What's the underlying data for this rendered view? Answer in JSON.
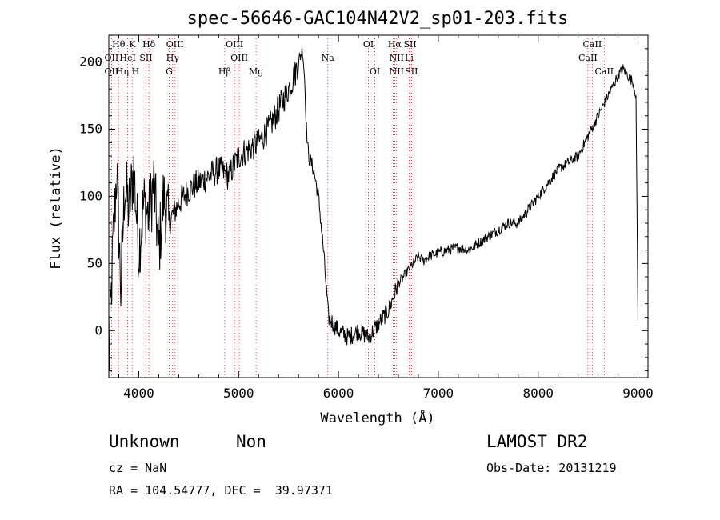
{
  "chart_data": {
    "type": "line",
    "title": "spec-56646-GAC104N42V2_sp01-203.fits",
    "xlabel": "Wavelength (Å)",
    "ylabel": "Flux (relative)",
    "xlim": [
      3700,
      9100
    ],
    "ylim": [
      -35,
      220
    ],
    "xticks": [
      4000,
      5000,
      6000,
      7000,
      8000,
      9000
    ],
    "yticks": [
      0,
      50,
      100,
      150,
      200
    ],
    "grid": false,
    "line_color": "#000000",
    "marker_color": "#ff0000",
    "series": [
      {
        "x": [
          3700,
          3740,
          3780,
          3820,
          3860,
          3900,
          3950,
          4000,
          4050,
          4100,
          4150,
          4200,
          4250,
          4300,
          4400,
          4500,
          4600,
          4700,
          4800,
          4900,
          5000,
          5100,
          5200,
          5300,
          5400,
          5500,
          5560,
          5600,
          5640,
          5660,
          5680,
          5700,
          5750,
          5800,
          5850,
          5900,
          6000,
          6100,
          6200,
          6300,
          6400,
          6450,
          6500,
          6550,
          6600,
          6650,
          6700,
          6750,
          6800,
          6850,
          6900,
          7000,
          7100,
          7200,
          7300,
          7400,
          7500,
          7600,
          7700,
          7800,
          7900,
          8000,
          8100,
          8200,
          8300,
          8400,
          8500,
          8600,
          8700,
          8800,
          8850,
          8900,
          8950,
          8980,
          9000
        ],
        "values": [
          -30,
          60,
          120,
          30,
          110,
          90,
          120,
          60,
          95,
          85,
          110,
          60,
          100,
          80,
          95,
          105,
          110,
          115,
          120,
          115,
          130,
          135,
          140,
          150,
          165,
          180,
          190,
          200,
          210,
          190,
          150,
          130,
          120,
          100,
          60,
          10,
          0,
          -5,
          0,
          -5,
          5,
          10,
          15,
          25,
          35,
          40,
          45,
          50,
          55,
          52,
          55,
          58,
          60,
          62,
          60,
          65,
          70,
          75,
          80,
          80,
          90,
          100,
          110,
          120,
          125,
          130,
          145,
          160,
          175,
          190,
          195,
          190,
          185,
          175,
          5
        ]
      }
    ],
    "lines": [
      {
        "name": "Hθ",
        "x": 3798
      },
      {
        "name": "K",
        "x": 3934
      },
      {
        "name": "Hδ",
        "x": 4102
      },
      {
        "name": "OII",
        "x": 3727
      },
      {
        "name": "HeI",
        "x": 3889
      },
      {
        "name": "SII",
        "x": 4072
      },
      {
        "name": "OIII",
        "x": 4363
      },
      {
        "name": "Hγ",
        "x": 4340
      },
      {
        "name": "G",
        "x": 4305
      },
      {
        "name": "Hβ",
        "x": 4861
      },
      {
        "name": "OIII",
        "x": 4959
      },
      {
        "name": "OIII",
        "x": 5007
      },
      {
        "name": "Mg",
        "x": 5175
      },
      {
        "name": "Na",
        "x": 5893
      },
      {
        "name": "OI",
        "x": 6300
      },
      {
        "name": "OI",
        "x": 6364
      },
      {
        "name": "Hα",
        "x": 6563
      },
      {
        "name": "NII",
        "x": 6583
      },
      {
        "name": "SII",
        "x": 6717
      },
      {
        "name": "NII",
        "x": 6548
      },
      {
        "name": "Li",
        "x": 6708
      },
      {
        "name": "SII",
        "x": 6731
      },
      {
        "name": "CaII",
        "x": 8498
      },
      {
        "name": "CaII",
        "x": 8542
      },
      {
        "name": "CaII",
        "x": 8662
      }
    ],
    "line_labels": [
      {
        "text": "Hθ",
        "x": 3798,
        "row": 0
      },
      {
        "text": "K",
        "x": 3934,
        "row": 0
      },
      {
        "text": "Hδ",
        "x": 4102,
        "row": 0
      },
      {
        "text": "OII",
        "x": 3727,
        "row": 1
      },
      {
        "text": "HeI",
        "x": 3889,
        "row": 1
      },
      {
        "text": "SII",
        "x": 4072,
        "row": 1
      },
      {
        "text": "OIII",
        "x": 4363,
        "row": 0
      },
      {
        "text": "Hγ",
        "x": 4340,
        "row": 1
      },
      {
        "text": "G",
        "x": 4305,
        "row": 2
      },
      {
        "text": "OIII",
        "x": 4959,
        "row": 0
      },
      {
        "text": "OIII",
        "x": 5007,
        "row": 1
      },
      {
        "text": "Hβ",
        "x": 4861,
        "row": 2
      },
      {
        "text": "Mg",
        "x": 5175,
        "row": 2
      },
      {
        "text": "Na",
        "x": 5893,
        "row": 1
      },
      {
        "text": "OI",
        "x": 6300,
        "row": 0
      },
      {
        "text": "OI",
        "x": 6364,
        "row": 2
      },
      {
        "text": "Hα",
        "x": 6563,
        "row": 0
      },
      {
        "text": "SII",
        "x": 6717,
        "row": 0
      },
      {
        "text": "NII",
        "x": 6583,
        "row": 1
      },
      {
        "text": "Li",
        "x": 6708,
        "row": 1
      },
      {
        "text": "NII",
        "x": 6583,
        "row": 2
      },
      {
        "text": "SII",
        "x": 6731,
        "row": 2
      },
      {
        "text": "OII",
        "x": 3727,
        "row": 2
      },
      {
        "text": "Hη",
        "x": 3835,
        "row": 2
      },
      {
        "text": "H",
        "x": 3969,
        "row": 2
      },
      {
        "text": "CaII",
        "x": 8542,
        "row": 0
      },
      {
        "text": "CaII",
        "x": 8498,
        "row": 1
      },
      {
        "text": "CaII",
        "x": 8662,
        "row": 2
      }
    ]
  },
  "footer": {
    "object_class": "Unknown",
    "subclass": "Non",
    "survey": "LAMOST DR2",
    "cz": "cz = NaN",
    "obs_date": "Obs-Date: 20131219",
    "coords": "RA = 104.54777, DEC =  39.97371"
  }
}
